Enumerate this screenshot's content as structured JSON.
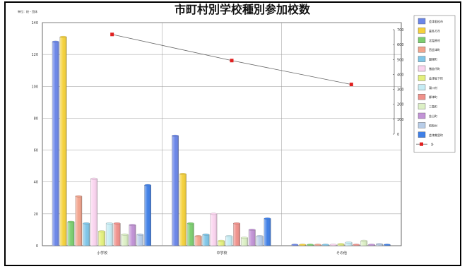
{
  "chart_data": {
    "type": "bar",
    "title": "市町村別学校種別参加校数",
    "ylabel": "単位：校・団体",
    "categories": [
      "小学校",
      "中学校",
      "その他"
    ],
    "ylim": [
      0,
      140
    ],
    "y_ticks": [
      0,
      20,
      40,
      60,
      80,
      100,
      120,
      140
    ],
    "y2lim": [
      0,
      700
    ],
    "y2_ticks": [
      0,
      100,
      200,
      300,
      400,
      500,
      600,
      700
    ],
    "series": [
      {
        "name": "会津若松市",
        "color": "#6b86e8",
        "values": [
          128,
          69,
          0
        ]
      },
      {
        "name": "喜多方市",
        "color": "#f5d13a",
        "values": [
          131,
          45,
          0
        ]
      },
      {
        "name": "北塩原村",
        "color": "#7ccf6f",
        "values": [
          15,
          14,
          0
        ]
      },
      {
        "name": "西会津町",
        "color": "#f2a38c",
        "values": [
          31,
          6,
          0
        ]
      },
      {
        "name": "磐梯町",
        "color": "#7fc6e8",
        "values": [
          14,
          7,
          0
        ]
      },
      {
        "name": "猪苗代町",
        "color": "#fad4ef",
        "values": [
          42,
          20,
          0
        ]
      },
      {
        "name": "会津坂下町",
        "color": "#e4f07d",
        "values": [
          9,
          3,
          1
        ]
      },
      {
        "name": "湯川村",
        "color": "#c6ecf4",
        "values": [
          14,
          6,
          2
        ]
      },
      {
        "name": "柳津町",
        "color": "#f0918b",
        "values": [
          14,
          14,
          0
        ]
      },
      {
        "name": "三島町",
        "color": "#dcf0c5",
        "values": [
          7,
          5,
          3
        ]
      },
      {
        "name": "金山町",
        "color": "#c293d6",
        "values": [
          13,
          10,
          0
        ]
      },
      {
        "name": "昭和村",
        "color": "#b8cde8",
        "values": [
          7,
          6,
          1
        ]
      },
      {
        "name": "会津美里町",
        "color": "#3f7fe6",
        "values": [
          38,
          17,
          0
        ]
      }
    ],
    "line_series": {
      "name": "計",
      "color": "#e02020",
      "axis": "secondary",
      "values": [
        668,
        493,
        333
      ]
    },
    "grid": true,
    "legend": "right"
  }
}
